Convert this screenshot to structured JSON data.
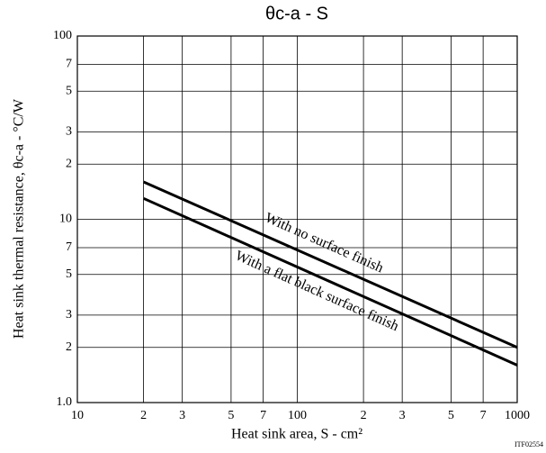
{
  "chart_data": {
    "type": "line",
    "title": "θc-a - S",
    "x_label": "Heat sink area, S - cm²",
    "y_label": "Heat sink thermal resistance, θc-a - °C/W",
    "annotation": "ITF02554",
    "log_x": true,
    "log_y": true,
    "grid": true,
    "x": [
      20,
      1000
    ],
    "series": [
      {
        "name": "With no surface finish",
        "color": "#000000",
        "values": [
          16,
          2
        ]
      },
      {
        "name": "With a flat black surface finish",
        "color": "#000000",
        "values": [
          13,
          1.6
        ]
      }
    ],
    "xlim": [
      10,
      1000
    ],
    "xticks": [
      10,
      {
        "value": 20,
        "label": "2"
      },
      {
        "value": 30,
        "label": "3"
      },
      {
        "value": 50,
        "label": "5"
      },
      {
        "value": 70,
        "label": "7"
      },
      100,
      {
        "value": 200,
        "label": "2"
      },
      {
        "value": 300,
        "label": "3"
      },
      {
        "value": 500,
        "label": "5"
      },
      {
        "value": 700,
        "label": "7"
      },
      1000
    ],
    "ylim": [
      1,
      100
    ],
    "yticks": [
      {
        "value": 1,
        "label": "1.0"
      },
      {
        "value": 2,
        "label": "2"
      },
      {
        "value": 3,
        "label": "3"
      },
      {
        "value": 5,
        "label": "5"
      },
      {
        "value": 7,
        "label": "7"
      },
      10,
      {
        "value": 20,
        "label": "2"
      },
      {
        "value": 30,
        "label": "3"
      },
      {
        "value": 50,
        "label": "5"
      },
      {
        "value": 70,
        "label": "7"
      },
      100
    ]
  }
}
